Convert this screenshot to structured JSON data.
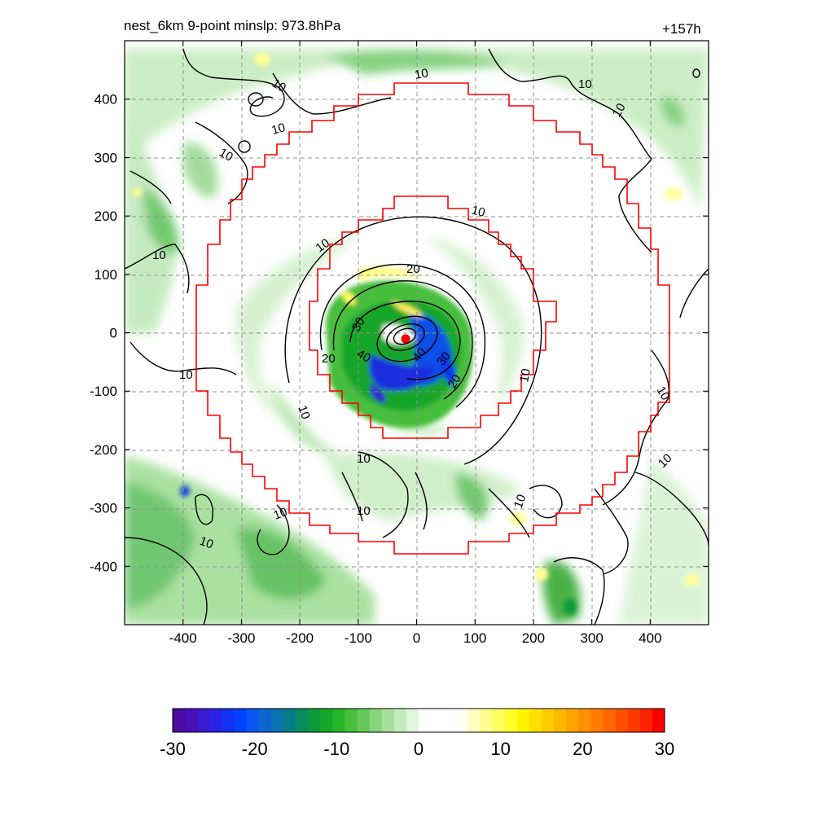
{
  "title": {
    "left": "nest_6km  9-point minslp: 973.8hPa",
    "right": "+157h"
  },
  "chart_data": {
    "type": "heatmap",
    "xlim": [
      -500,
      500
    ],
    "ylim": [
      -500,
      500
    ],
    "x_ticks": [
      -400,
      -300,
      -200,
      -100,
      0,
      100,
      200,
      300,
      400
    ],
    "y_ticks": [
      400,
      300,
      200,
      100,
      0,
      -100,
      -200,
      -300,
      -400
    ],
    "grid": true,
    "colorbar": {
      "min": -30,
      "max": 30,
      "tick_values": [
        -30,
        -20,
        -10,
        0,
        10,
        20,
        30
      ],
      "tick_labels": [
        "-30",
        "-20",
        "-10",
        "0",
        "10",
        "20",
        "30"
      ],
      "colors": [
        "#4b0aa0",
        "#4a10b8",
        "#3a1ad0",
        "#2a22e4",
        "#1432f2",
        "#0040ff",
        "#0a56ee",
        "#0c66d0",
        "#0a72b0",
        "#067e8a",
        "#0a8c5c",
        "#0a9a3a",
        "#14a82a",
        "#28b428",
        "#46be3c",
        "#66c858",
        "#86d47a",
        "#a6e09c",
        "#c4ecbc",
        "#e0f6dc",
        "#ffffff",
        "#ffffff",
        "#ffffff",
        "#fffff0",
        "#ffffc0",
        "#ffff90",
        "#ffff60",
        "#ffff28",
        "#fff400",
        "#ffe000",
        "#ffcc00",
        "#ffb800",
        "#ffa400",
        "#ff9000",
        "#ff7c00",
        "#ff6600",
        "#ff5000",
        "#ff3a00",
        "#ff2400",
        "#ff0000"
      ]
    },
    "contour_labels": [
      "10",
      "10",
      "10",
      "10",
      "10",
      "10",
      "10",
      "10",
      "10",
      "10",
      "10",
      "10",
      "10",
      "10",
      "10",
      "10",
      "10",
      "10",
      "10",
      "20",
      "20",
      "20",
      "30",
      "30",
      "40",
      "40"
    ],
    "features": {
      "storm_center": {
        "x": -20,
        "y": -10
      }
    }
  }
}
